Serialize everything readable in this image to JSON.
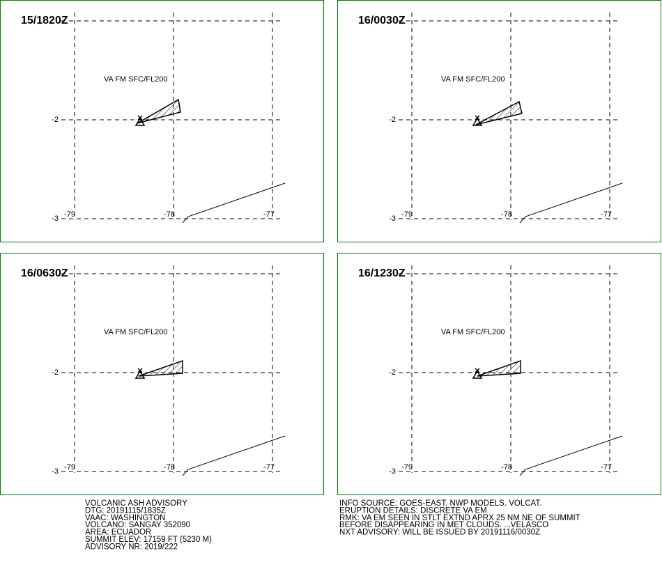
{
  "panels": [
    {
      "time": "15/1820Z",
      "label": "VA FM SFC/FL200"
    },
    {
      "time": "16/0030Z",
      "label": "VA FM SFC/FL200"
    },
    {
      "time": "16/0630Z",
      "label": "VA FM SFC/FL200"
    },
    {
      "time": "16/1230Z",
      "label": "VA FM SFC/FL200"
    }
  ],
  "lat_labels": [
    "-2",
    "-3"
  ],
  "lon_labels": [
    "-79",
    "-78",
    "-77"
  ],
  "info_left": [
    "VOLCANIC ASH ADVISORY",
    "DTG: 20191115/1835Z",
    "VAAC: WASHINGTON",
    "VOLCANO: SANGAY 352090",
    "AREA: ECUADOR",
    "SUMMIT ELEV: 17159 FT (5230 M)",
    "ADVISORY NR: 2019/222"
  ],
  "info_right": [
    "INFO SOURCE: GOES-EAST. NWP MODELS. VOLCAT.",
    "ERUPTION DETAILS: DISCRETE VA EM",
    "RMK: VA EM SEEN IN STLT EXTND APRX 25 NM NE OF SUMMIT",
    "BEFORE DISAPPEARING IN MET CLOUDS. ...VELASCO",
    "NXT ADVISORY: WILL BE ISSUED BY 20191116/0030Z"
  ]
}
